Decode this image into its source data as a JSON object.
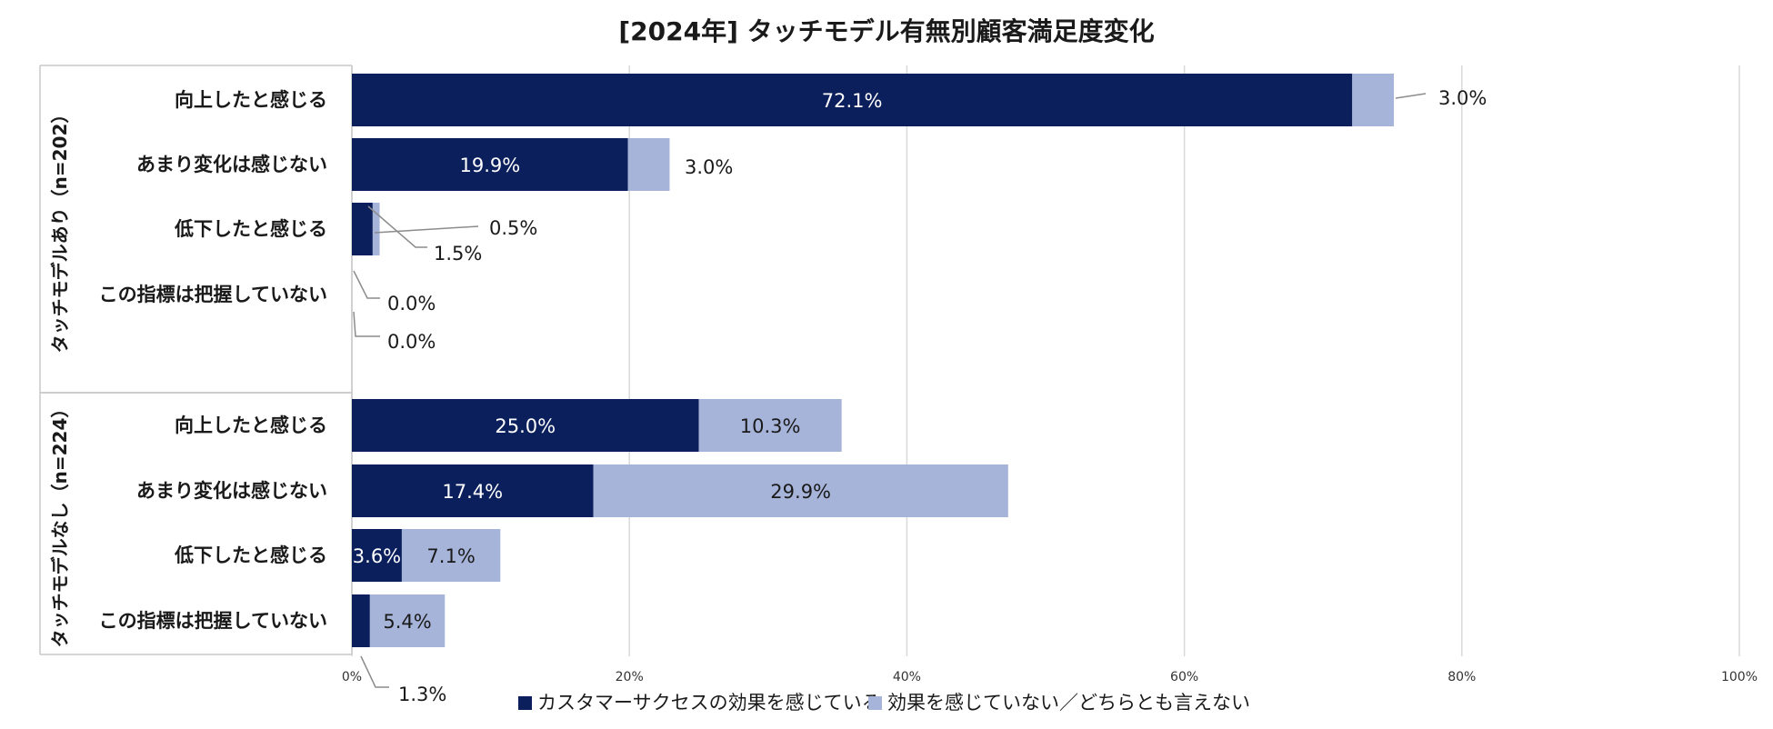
{
  "chart_data": {
    "type": "bar",
    "orientation": "horizontal",
    "stacked": true,
    "title": "[2024年] タッチモデル有無別顧客満足度変化",
    "xlim": [
      0,
      100
    ],
    "x_ticks": [
      "0%",
      "20%",
      "40%",
      "60%",
      "80%",
      "100%"
    ],
    "grid": true,
    "legend_position": "bottom",
    "colors": {
      "series1": "#0b1f5c",
      "series2": "#a7b4da"
    },
    "series_names": [
      "カスタマーサクセスの効果を感じている",
      "効果を感じていない／どちらとも言えない"
    ],
    "groups": [
      {
        "label": "タッチモデルあり（n=202）",
        "rows": [
          {
            "category": "向上したと感じる",
            "values": [
              72.1,
              3.0
            ],
            "labels": [
              "72.1%",
              "3.0%"
            ]
          },
          {
            "category": "あまり変化は感じない",
            "values": [
              19.9,
              3.0
            ],
            "labels": [
              "19.9%",
              "3.0%"
            ]
          },
          {
            "category": "低下したと感じる",
            "values": [
              1.5,
              0.5
            ],
            "labels": [
              "1.5%",
              "0.5%"
            ]
          },
          {
            "category": "この指標は把握していない",
            "values": [
              0.0,
              0.0
            ],
            "labels": [
              "0.0%",
              "0.0%"
            ]
          }
        ]
      },
      {
        "label": "タッチモデルなし（n=224）",
        "rows": [
          {
            "category": "向上したと感じる",
            "values": [
              25.0,
              10.3
            ],
            "labels": [
              "25.0%",
              "10.3%"
            ]
          },
          {
            "category": "あまり変化は感じない",
            "values": [
              17.4,
              29.9
            ],
            "labels": [
              "17.4%",
              "29.9%"
            ]
          },
          {
            "category": "低下したと感じる",
            "values": [
              3.6,
              7.1
            ],
            "labels": [
              "3.6%",
              "7.1%"
            ]
          },
          {
            "category": "この指標は把握していない",
            "values": [
              1.3,
              5.4
            ],
            "labels": [
              "1.3%",
              "5.4%"
            ]
          }
        ]
      }
    ]
  }
}
